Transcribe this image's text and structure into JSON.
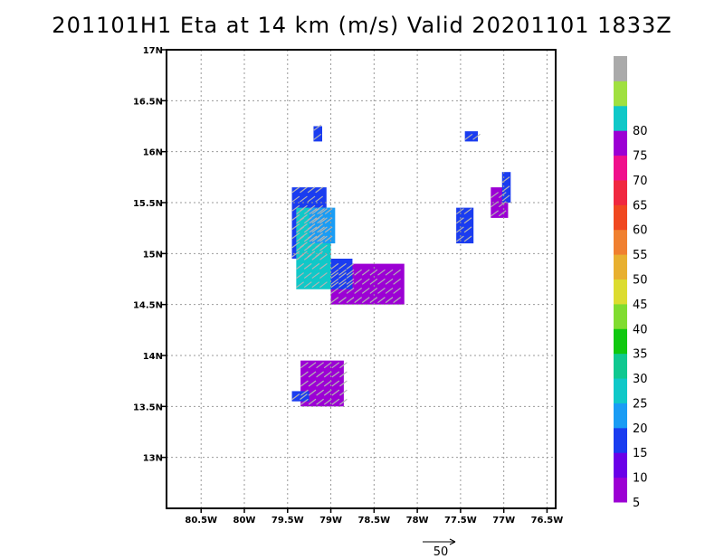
{
  "chart_data": {
    "type": "heatmap",
    "title": "201101H1 Eta at 14 km (m/s) Valid 20201101 1833Z",
    "xlabel": "",
    "ylabel": "",
    "xlim": [
      -80.9,
      -76.4
    ],
    "ylim": [
      12.5,
      17.0
    ],
    "grid": true,
    "x_ticks": [
      {
        "value": -80.5,
        "label": "80.5W"
      },
      {
        "value": -80.0,
        "label": "80W"
      },
      {
        "value": -79.5,
        "label": "79.5W"
      },
      {
        "value": -79.0,
        "label": "79W"
      },
      {
        "value": -78.5,
        "label": "78.5W"
      },
      {
        "value": -78.0,
        "label": "78W"
      },
      {
        "value": -77.5,
        "label": "77.5W"
      },
      {
        "value": -77.0,
        "label": "77W"
      },
      {
        "value": -76.5,
        "label": "76.5W"
      }
    ],
    "y_ticks": [
      {
        "value": 13.0,
        "label": "13N"
      },
      {
        "value": 13.5,
        "label": "13.5N"
      },
      {
        "value": 14.0,
        "label": "14N"
      },
      {
        "value": 14.5,
        "label": "14.5N"
      },
      {
        "value": 15.0,
        "label": "15N"
      },
      {
        "value": 15.5,
        "label": "15.5N"
      },
      {
        "value": 16.0,
        "label": "16N"
      },
      {
        "value": 16.5,
        "label": "16.5N"
      },
      {
        "value": 17.0,
        "label": "17N"
      }
    ],
    "colorbar": {
      "bins": [
        {
          "color": "#9c00d4",
          "label": "5"
        },
        {
          "color": "#6a00e8",
          "label": "10"
        },
        {
          "color": "#1a3cf0",
          "label": "15"
        },
        {
          "color": "#1a9cf4",
          "label": "20"
        },
        {
          "color": "#10c8c8",
          "label": "25"
        },
        {
          "color": "#10c890",
          "label": "30"
        },
        {
          "color": "#10c810",
          "label": "35"
        },
        {
          "color": "#80dc30",
          "label": "40"
        },
        {
          "color": "#dcdc30",
          "label": "45"
        },
        {
          "color": "#e8b030",
          "label": "50"
        },
        {
          "color": "#f08030",
          "label": "55"
        },
        {
          "color": "#f04820",
          "label": "60"
        },
        {
          "color": "#f02840",
          "label": "65"
        },
        {
          "color": "#f0108c",
          "label": "70"
        },
        {
          "color": "#9c00d4",
          "label": "75"
        },
        {
          "color": "#10c8c8",
          "label": "80"
        },
        {
          "color": "#a0e040",
          "label": ""
        },
        {
          "color": "#aaaaaa",
          "label": ""
        }
      ]
    },
    "reference_vector": {
      "label": "50",
      "magnitude": 50
    },
    "regions": [
      {
        "name": "central-west",
        "color": "#1a3cf0",
        "lon": [
          -79.45,
          -79.05
        ],
        "lat": [
          14.95,
          15.65
        ]
      },
      {
        "name": "central-west-teal",
        "color": "#10c8c8",
        "lon": [
          -79.4,
          -79.0
        ],
        "lat": [
          14.65,
          15.45
        ]
      },
      {
        "name": "central-west-light",
        "color": "#1a9cf4",
        "lon": [
          -79.25,
          -78.95
        ],
        "lat": [
          15.1,
          15.45
        ]
      },
      {
        "name": "central-east",
        "color": "#9c00d4",
        "lon": [
          -79.0,
          -78.15
        ],
        "lat": [
          14.5,
          14.9
        ]
      },
      {
        "name": "central-east-blue",
        "color": "#1a3cf0",
        "lon": [
          -79.0,
          -78.75
        ],
        "lat": [
          14.65,
          14.95
        ]
      },
      {
        "name": "south",
        "color": "#9c00d4",
        "lon": [
          -79.35,
          -78.85
        ],
        "lat": [
          13.5,
          13.95
        ]
      },
      {
        "name": "south-blue",
        "color": "#1a3cf0",
        "lon": [
          -79.45,
          -79.25
        ],
        "lat": [
          13.55,
          13.65
        ]
      },
      {
        "name": "northeast-a",
        "color": "#1a3cf0",
        "lon": [
          -77.55,
          -77.35
        ],
        "lat": [
          15.1,
          15.45
        ]
      },
      {
        "name": "northeast-b",
        "color": "#9c00d4",
        "lon": [
          -77.15,
          -76.95
        ],
        "lat": [
          15.35,
          15.65
        ]
      },
      {
        "name": "northeast-c",
        "color": "#1a3cf0",
        "lon": [
          -77.02,
          -76.92
        ],
        "lat": [
          15.5,
          15.8
        ]
      },
      {
        "name": "northeast-d",
        "color": "#1a3cf0",
        "lon": [
          -77.45,
          -77.3
        ],
        "lat": [
          16.1,
          16.2
        ]
      },
      {
        "name": "north-speck",
        "color": "#1a3cf0",
        "lon": [
          -79.2,
          -79.1
        ],
        "lat": [
          16.1,
          16.25
        ]
      }
    ]
  }
}
